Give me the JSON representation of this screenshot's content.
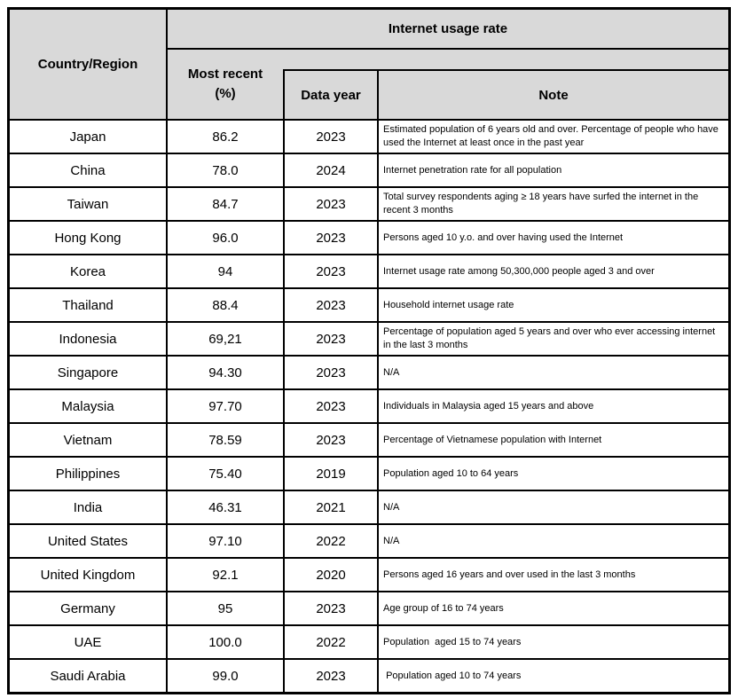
{
  "table": {
    "colors": {
      "header_bg": "#d9d9d9",
      "border": "#000000",
      "body_bg": "#ffffff",
      "text": "#000000"
    },
    "header": {
      "country_col_label": "Country/Region",
      "group_title": "Internet usage rate",
      "most_recent_label": "Most recent\n(%)",
      "data_year_label": "Data year",
      "note_label": "Note"
    },
    "rows": [
      {
        "country": "Japan",
        "most_recent": "86.2",
        "year": "2023",
        "note": "Estimated population of 6 years old and over. Percentage of people who have used the Internet at least once in the past year"
      },
      {
        "country": "China",
        "most_recent": "78.0",
        "year": "2024",
        "note": "Internet penetration rate for all population"
      },
      {
        "country": "Taiwan",
        "most_recent": "84.7",
        "year": "2023",
        "note": "Total survey respondents aging ≥ 18 years have surfed the internet in the recent 3 months"
      },
      {
        "country": "Hong Kong",
        "most_recent": "96.0",
        "year": "2023",
        "note": "Persons aged 10 y.o. and over having used the Internet"
      },
      {
        "country": "Korea",
        "most_recent": "94",
        "year": "2023",
        "note": "Internet usage rate among 50,300,000 people aged 3 and over"
      },
      {
        "country": "Thailand",
        "most_recent": "88.4",
        "year": "2023",
        "note": "Household internet usage rate"
      },
      {
        "country": "Indonesia",
        "most_recent": "69,21",
        "year": "2023",
        "note": "Percentage of population aged 5 years and over who ever accessing internet in the last 3 months"
      },
      {
        "country": "Singapore",
        "most_recent": "94.30",
        "year": "2023",
        "note": "N/A"
      },
      {
        "country": "Malaysia",
        "most_recent": "97.70",
        "year": "2023",
        "note": "Individuals in Malaysia aged 15 years and above"
      },
      {
        "country": "Vietnam",
        "most_recent": "78.59",
        "year": "2023",
        "note": "Percentage of Vietnamese population with Internet"
      },
      {
        "country": "Philippines",
        "most_recent": "75.40",
        "year": "2019",
        "note": "Population aged 10 to 64 years"
      },
      {
        "country": "India",
        "most_recent": "46.31",
        "year": "2021",
        "note": "N/A"
      },
      {
        "country": "United States",
        "most_recent": "97.10",
        "year": "2022",
        "note": "N/A"
      },
      {
        "country": "United Kingdom",
        "most_recent": "92.1",
        "year": "2020",
        "note": "Persons aged 16 years and over used in the last 3 months"
      },
      {
        "country": "Germany",
        "most_recent": "95",
        "year": "2023",
        "note": "Age group of 16 to 74 years"
      },
      {
        "country": "UAE",
        "most_recent": "100.0",
        "year": "2022",
        "note": "Population  aged 15 to 74 years"
      },
      {
        "country": "Saudi Arabia",
        "most_recent": "99.0",
        "year": "2023",
        "note": " Population aged 10 to 74 years"
      }
    ]
  }
}
